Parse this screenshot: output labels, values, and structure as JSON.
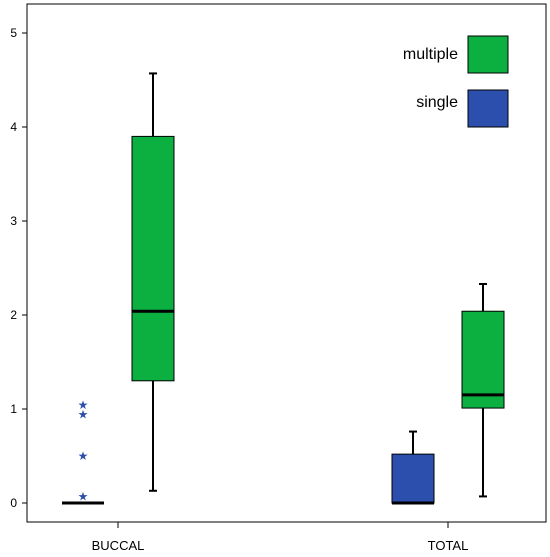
{
  "chart_data": {
    "type": "boxplot",
    "title": "",
    "xlabel": "",
    "ylabel": "",
    "ylim": [
      0,
      5.1
    ],
    "yticks": [
      "0",
      "1",
      "2",
      "3",
      "4",
      "5"
    ],
    "categories": [
      "BUCCAL",
      "TOTAL"
    ],
    "grid": false,
    "legend_position": "top-right",
    "series": [
      {
        "name": "single",
        "color": "#2c4fae",
        "boxes": [
          {
            "category": "BUCCAL",
            "min": 0.0,
            "q1": 0.0,
            "median": 0.0,
            "q3": 0.0,
            "max": 0.0,
            "outliers": [
              0.07,
              0.5,
              0.94,
              1.04
            ]
          },
          {
            "category": "TOTAL",
            "min": 0.0,
            "q1": 0.0,
            "median": 0.0,
            "q3": 0.52,
            "max": 0.76,
            "outliers": []
          }
        ]
      },
      {
        "name": "multiple",
        "color": "#0cb040",
        "boxes": [
          {
            "category": "BUCCAL",
            "min": 0.13,
            "q1": 1.3,
            "median": 2.04,
            "q3": 3.9,
            "max": 4.57,
            "outliers": []
          },
          {
            "category": "TOTAL",
            "min": 0.07,
            "q1": 1.01,
            "median": 1.15,
            "q3": 2.04,
            "max": 2.33,
            "outliers": []
          }
        ]
      }
    ],
    "legend": [
      "multiple",
      "single"
    ]
  }
}
